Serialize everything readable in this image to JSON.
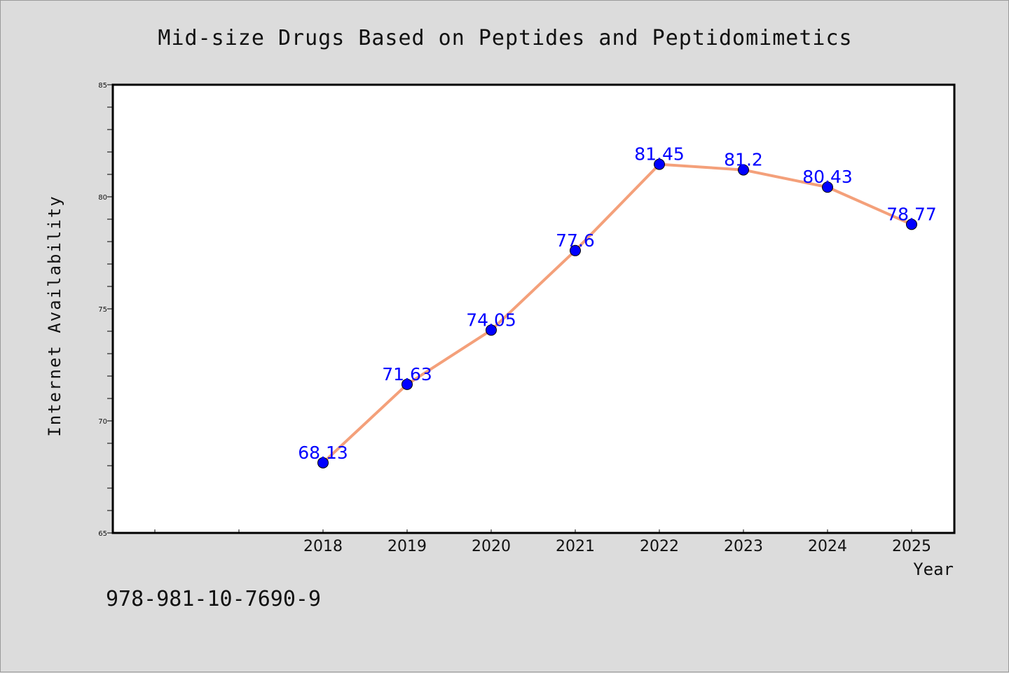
{
  "chart_data": {
    "type": "line",
    "title": "Mid-size Drugs Based on Peptides and Peptidomimetics",
    "xlabel": "Year",
    "ylabel": "Internet Availability",
    "categories": [
      "2018",
      "2019",
      "2020",
      "2021",
      "2022",
      "2023",
      "2024",
      "2025"
    ],
    "series": [
      {
        "values": [
          68.13,
          71.63,
          74.05,
          77.6,
          81.45,
          81.2,
          80.43,
          78.77
        ],
        "labels": [
          "68.13",
          "71.63",
          "74.05",
          "77.6",
          "81.45",
          "81.2",
          "80.43",
          "78.77"
        ],
        "line_color": "#f4a07a",
        "marker_color": "#0000ff",
        "label_color": "#0000ff"
      }
    ],
    "ylim": [
      65,
      85
    ],
    "yticks": [
      "65",
      "70",
      "75",
      "80",
      "85"
    ],
    "grid": false,
    "legend": "none"
  },
  "footer_text": "978-981-10-7690-9",
  "colors": {
    "background": "#dcdcdc",
    "plot_bg": "#ffffff",
    "axis": "#000000"
  }
}
